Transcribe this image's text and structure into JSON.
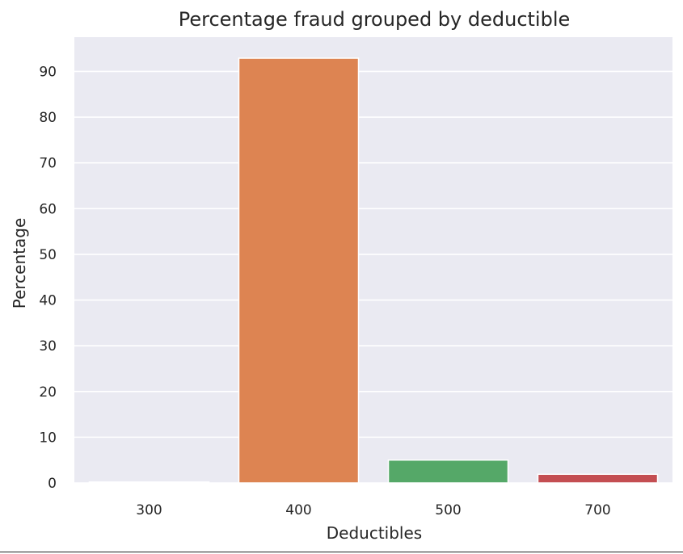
{
  "chart_data": {
    "type": "bar",
    "title": "Percentage fraud grouped by deductible",
    "xlabel": "Deductibles",
    "ylabel": "Percentage",
    "categories": [
      "300",
      "400",
      "500",
      "700"
    ],
    "values": [
      0.2,
      92.9,
      5.0,
      1.9
    ],
    "colors": [
      "#4c72b0",
      "#dd8452",
      "#55a868",
      "#c44e52"
    ],
    "yticks": [
      0,
      10,
      20,
      30,
      40,
      50,
      60,
      70,
      80,
      90
    ],
    "ylim": [
      0,
      97.5
    ],
    "grid": true,
    "legend": "none",
    "background": "#eaeaf2"
  }
}
